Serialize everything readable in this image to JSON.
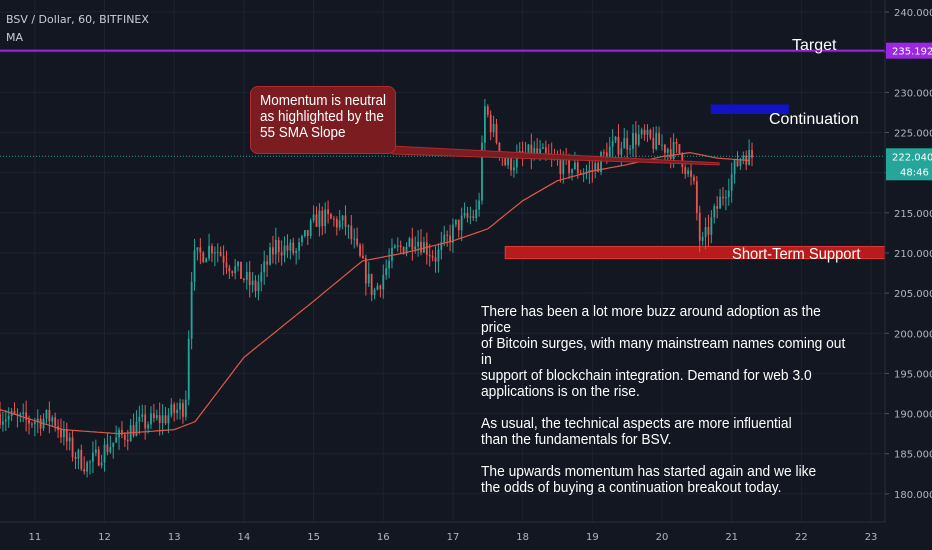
{
  "header": {
    "symbol_line": "BSV / Dollar, 60, BITFINEX",
    "indicator": "MA"
  },
  "annotations": {
    "target": "Target",
    "continuation": "Continuation",
    "support": "Short-Term Support",
    "momentum_note": "Momentum is neutral\nas highlighted by the\n55 SMA Slope",
    "commentary": [
      "There has been a lot more buzz around adoption as the price\nof Bitcoin surges, with many mainstream names coming out in\nsupport of blockchain integration. Demand for web 3.0\napplications is on the rise.",
      "As usual, the technical aspects are more influential\nthan the fundamentals for BSV.",
      "The upwards momentum has started again and we like\nthe odds of buying a continuation breakout today."
    ]
  },
  "price_labels": {
    "target_level": "235.192",
    "last_price": "222.040",
    "countdown": "48:46"
  },
  "colors": {
    "background": "#131722",
    "up": "#26a69a",
    "down": "#ef5350",
    "ma": "#e0584a",
    "target_line": "#9b27e0",
    "continuation_zone": "#1212c8",
    "support_zone": "#b71c1c",
    "last_price": "#26a69a"
  },
  "chart_data": {
    "type": "candlestick",
    "timeframe": "60",
    "x_ticks": [
      "11",
      "12",
      "13",
      "14",
      "15",
      "16",
      "17",
      "18",
      "19",
      "20",
      "21",
      "22",
      "23"
    ],
    "y_ticks": [
      "180.000",
      "185.000",
      "190.000",
      "195.000",
      "200.000",
      "205.000",
      "210.000",
      "215.000",
      "220.000",
      "225.000",
      "230.000",
      "235.000",
      "240.000"
    ],
    "ylim": [
      176.5,
      241.5
    ],
    "xlim_days": [
      10.5,
      23.2
    ],
    "levels": {
      "target": 235.192,
      "continuation_zone": [
        227.3,
        228.5
      ],
      "support_zone": [
        209.3,
        210.8
      ],
      "last_price": 222.04
    },
    "ohlc_keypoints": [
      {
        "day": 10.5,
        "price": 190.0
      },
      {
        "day": 10.9,
        "price": 189.0
      },
      {
        "day": 11.3,
        "price": 189.5
      },
      {
        "day": 11.6,
        "price": 185.0
      },
      {
        "day": 11.8,
        "price": 183.5
      },
      {
        "day": 12.1,
        "price": 186.0
      },
      {
        "day": 12.5,
        "price": 188.5
      },
      {
        "day": 12.9,
        "price": 189.5
      },
      {
        "day": 13.2,
        "price": 191.0
      },
      {
        "day": 13.3,
        "price": 209.0
      },
      {
        "day": 13.6,
        "price": 211.0
      },
      {
        "day": 13.8,
        "price": 209.0
      },
      {
        "day": 14.2,
        "price": 205.5
      },
      {
        "day": 14.5,
        "price": 211.0
      },
      {
        "day": 14.8,
        "price": 210.0
      },
      {
        "day": 15.1,
        "price": 214.5
      },
      {
        "day": 15.5,
        "price": 213.5
      },
      {
        "day": 15.9,
        "price": 205.0
      },
      {
        "day": 16.2,
        "price": 210.0
      },
      {
        "day": 16.5,
        "price": 212.0
      },
      {
        "day": 16.8,
        "price": 209.5
      },
      {
        "day": 17.1,
        "price": 213.5
      },
      {
        "day": 17.4,
        "price": 215.0
      },
      {
        "day": 17.5,
        "price": 228.0
      },
      {
        "day": 17.8,
        "price": 221.0
      },
      {
        "day": 18.2,
        "price": 222.5
      },
      {
        "day": 18.6,
        "price": 221.0
      },
      {
        "day": 19.0,
        "price": 220.0
      },
      {
        "day": 19.3,
        "price": 223.0
      },
      {
        "day": 19.7,
        "price": 224.5
      },
      {
        "day": 20.0,
        "price": 223.5
      },
      {
        "day": 20.3,
        "price": 222.5
      },
      {
        "day": 20.5,
        "price": 218.0
      },
      {
        "day": 20.6,
        "price": 210.5
      },
      {
        "day": 20.8,
        "price": 215.0
      },
      {
        "day": 21.0,
        "price": 219.0
      },
      {
        "day": 21.2,
        "price": 222.5
      },
      {
        "day": 21.3,
        "price": 222.0
      }
    ],
    "ma_keypoints": [
      {
        "day": 10.5,
        "price": 190.5
      },
      {
        "day": 11.4,
        "price": 188.0
      },
      {
        "day": 12.2,
        "price": 187.5
      },
      {
        "day": 13.0,
        "price": 188.0
      },
      {
        "day": 13.3,
        "price": 189.0
      },
      {
        "day": 14.0,
        "price": 197.0
      },
      {
        "day": 15.0,
        "price": 204.0
      },
      {
        "day": 15.7,
        "price": 209.0
      },
      {
        "day": 16.3,
        "price": 210.0
      },
      {
        "day": 17.0,
        "price": 211.5
      },
      {
        "day": 17.5,
        "price": 213.0
      },
      {
        "day": 18.0,
        "price": 216.5
      },
      {
        "day": 18.5,
        "price": 219.0
      },
      {
        "day": 19.0,
        "price": 220.2
      },
      {
        "day": 19.5,
        "price": 221.0
      },
      {
        "day": 20.0,
        "price": 222.0
      },
      {
        "day": 20.4,
        "price": 222.5
      },
      {
        "day": 20.8,
        "price": 221.8
      },
      {
        "day": 21.3,
        "price": 221.5
      }
    ]
  }
}
